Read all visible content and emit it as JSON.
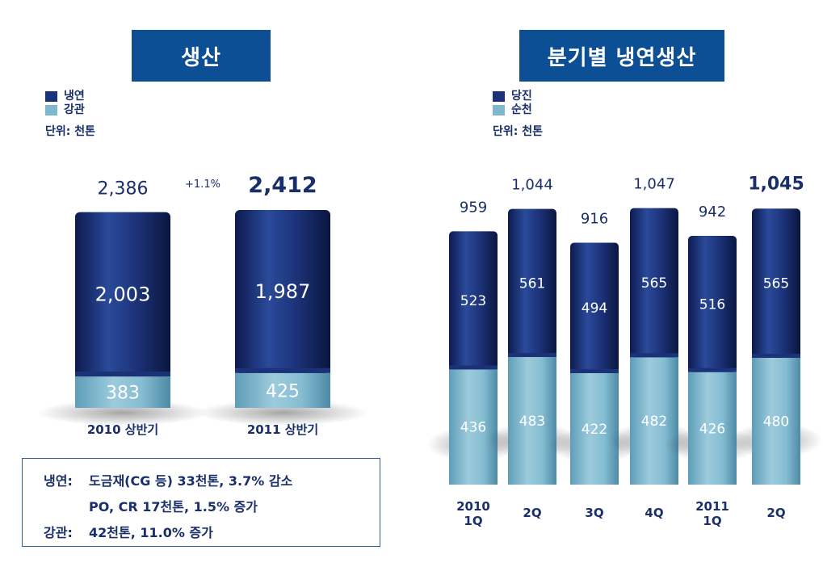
{
  "left_panel": {
    "title": "생산",
    "legend": [
      {
        "name": "냉연",
        "color": "#1c3278"
      },
      {
        "name": "강관",
        "color": "#7fb7ce"
      }
    ],
    "unit": "단위: 천톤",
    "growth_label": "+1.1%",
    "notes": {
      "line1_label": "냉연:",
      "line1_text": "도금재(CG 등) 33천톤, 3.7% 감소",
      "line2_text": "PO, CR 17천톤, 1.5% 증가",
      "line3_label": "강관:",
      "line3_text": "42천톤, 11.0% 증가"
    }
  },
  "right_panel": {
    "title": "분기별 냉연생산",
    "legend": [
      {
        "name": "당진",
        "color": "#1c3278"
      },
      {
        "name": "순천",
        "color": "#7fb7ce"
      }
    ],
    "unit": "단위: 천톤"
  },
  "chart_data": [
    {
      "type": "bar",
      "stacked": true,
      "categories": [
        "2010 상반기",
        "2011 상반기"
      ],
      "series": [
        {
          "name": "냉연",
          "values": [
            2003,
            1987
          ],
          "labels": [
            "2,003",
            "1,987"
          ],
          "color": "#1c3278"
        },
        {
          "name": "강관",
          "values": [
            383,
            425
          ],
          "labels": [
            "383",
            "425"
          ],
          "color": "#7fb7ce"
        }
      ],
      "totals": [
        2386,
        2412
      ],
      "total_labels": [
        "2,386",
        "2,412"
      ]
    },
    {
      "type": "bar",
      "stacked": true,
      "categories": [
        "2010 1Q",
        "2Q",
        "3Q",
        "4Q",
        "2011 1Q",
        "2Q"
      ],
      "category_lines": [
        [
          "2010",
          "1Q"
        ],
        [
          "2Q"
        ],
        [
          "3Q"
        ],
        [
          "4Q"
        ],
        [
          "2011",
          "1Q"
        ],
        [
          "2Q"
        ]
      ],
      "series": [
        {
          "name": "당진",
          "values": [
            523,
            561,
            494,
            565,
            516,
            565
          ],
          "labels": [
            "523",
            "561",
            "494",
            "565",
            "516",
            "565"
          ],
          "color": "#1c3278"
        },
        {
          "name": "순천",
          "values": [
            436,
            483,
            422,
            482,
            426,
            480
          ],
          "labels": [
            "436",
            "483",
            "422",
            "482",
            "426",
            "480"
          ],
          "color": "#7fb7ce"
        }
      ],
      "totals": [
        959,
        1044,
        916,
        1047,
        942,
        1045
      ],
      "total_labels": [
        "959",
        "1,044",
        "916",
        "1,047",
        "942",
        "1,045"
      ]
    }
  ]
}
